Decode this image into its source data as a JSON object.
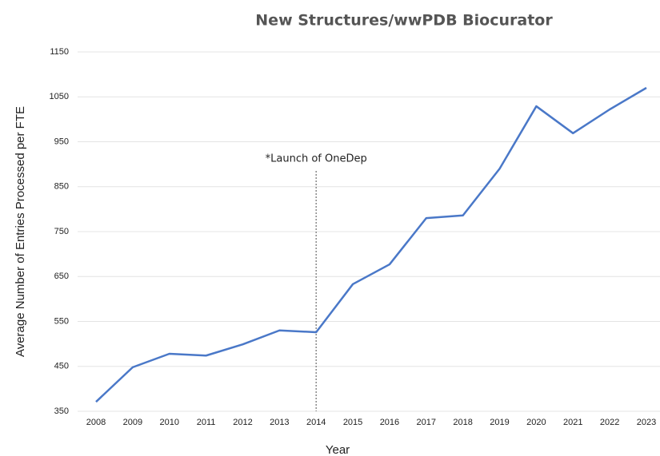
{
  "chart_data": {
    "type": "line",
    "title": "New Structures/wwPDB Biocurator",
    "x_label": "Year",
    "y_label": "Average Number of Entries Processed per FTE",
    "categories": [
      "2008",
      "2009",
      "2010",
      "2011",
      "2012",
      "2013",
      "2014",
      "2015",
      "2016",
      "2017",
      "2018",
      "2019",
      "2020",
      "2021",
      "2022",
      "2023"
    ],
    "series": [
      {
        "name": "New Structures/wwPDB Biocurator",
        "color": "#4a78c8",
        "values": [
          371,
          448,
          478,
          474,
          499,
          530,
          526,
          633,
          677,
          780,
          786,
          890,
          1029,
          969,
          1022,
          1070
        ]
      }
    ],
    "ylim": [
      350,
      1150
    ],
    "yticks": [
      350,
      450,
      550,
      650,
      750,
      850,
      950,
      1050,
      1150
    ],
    "grid": true,
    "annotation": {
      "text": "*Launch of OneDep",
      "category": "2014"
    }
  }
}
